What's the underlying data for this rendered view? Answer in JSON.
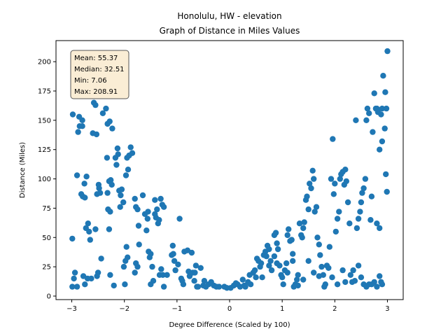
{
  "chart_data": {
    "type": "scatter",
    "title": "Honolulu, HW - elevation",
    "subtitle": "Graph of Distance in Miles Values",
    "xlabel": "Degree Difference (Scaled by 100)",
    "ylabel": "Distance (Miles)",
    "xlim": [
      -3.3,
      3.3
    ],
    "ylim": [
      -3,
      218
    ],
    "xticks": [
      -3,
      -2,
      -1,
      0,
      1,
      2,
      3
    ],
    "xtick_labels": [
      "−3",
      "−2",
      "−1",
      "0",
      "1",
      "2",
      "3"
    ],
    "yticks": [
      0,
      25,
      50,
      75,
      100,
      125,
      150,
      175,
      200
    ],
    "ytick_labels": [
      "0",
      "25",
      "50",
      "75",
      "100",
      "125",
      "150",
      "175",
      "200"
    ],
    "grid": false,
    "marker_color": "#1f77b4",
    "stats_box": {
      "lines": [
        "Mean: 55.37",
        "Median: 32.51",
        "Min: 7.06",
        "Max: 208.91"
      ],
      "placement": "top-left",
      "fill": "#f5deb3",
      "edge": "#555555"
    },
    "points": [
      [
        -2.98,
        155
      ],
      [
        -2.94,
        20
      ],
      [
        -2.96,
        15
      ],
      [
        -2.9,
        8
      ],
      [
        -2.99,
        8
      ],
      [
        -2.99,
        49
      ],
      [
        -2.9,
        103
      ],
      [
        -2.88,
        140
      ],
      [
        -2.85,
        145
      ],
      [
        -2.86,
        153
      ],
      [
        -2.8,
        150
      ],
      [
        -2.8,
        145
      ],
      [
        -2.82,
        87
      ],
      [
        -2.79,
        85
      ],
      [
        -2.76,
        96
      ],
      [
        -2.72,
        102
      ],
      [
        -2.75,
        84
      ],
      [
        -2.73,
        58
      ],
      [
        -2.67,
        55
      ],
      [
        -2.69,
        62
      ],
      [
        -2.65,
        48
      ],
      [
        -2.78,
        17
      ],
      [
        -2.75,
        10
      ],
      [
        -2.7,
        15
      ],
      [
        -2.63,
        15
      ],
      [
        -2.6,
        139
      ],
      [
        -2.58,
        165
      ],
      [
        -2.55,
        163
      ],
      [
        -2.53,
        138
      ],
      [
        -2.52,
        87
      ],
      [
        -2.49,
        95
      ],
      [
        -2.48,
        92
      ],
      [
        -2.46,
        88
      ],
      [
        -2.55,
        57
      ],
      [
        -2.5,
        20
      ],
      [
        -2.52,
        17
      ],
      [
        -2.44,
        32
      ],
      [
        -2.41,
        156
      ],
      [
        -2.35,
        160
      ],
      [
        -2.33,
        118
      ],
      [
        -2.32,
        147
      ],
      [
        -2.28,
        149
      ],
      [
        -2.27,
        72
      ],
      [
        -2.31,
        74
      ],
      [
        -2.32,
        88
      ],
      [
        -2.29,
        98
      ],
      [
        -2.26,
        99
      ],
      [
        -2.24,
        95
      ],
      [
        -2.29,
        57
      ],
      [
        -2.27,
        18
      ],
      [
        -2.2,
        9
      ],
      [
        -2.23,
        143
      ],
      [
        -2.17,
        118
      ],
      [
        -2.15,
        112
      ],
      [
        -2.13,
        126
      ],
      [
        -2.12,
        121
      ],
      [
        -2.1,
        90
      ],
      [
        -2.07,
        86
      ],
      [
        -2.05,
        91
      ],
      [
        -2.08,
        76
      ],
      [
        -2.02,
        80
      ],
      [
        -2.01,
        25
      ],
      [
        -1.98,
        30
      ],
      [
        -1.96,
        42
      ],
      [
        -1.94,
        33
      ],
      [
        -1.99,
        10
      ],
      [
        -1.95,
        118
      ],
      [
        -1.97,
        103
      ],
      [
        -1.93,
        108
      ],
      [
        -1.91,
        120
      ],
      [
        -1.88,
        127
      ],
      [
        -1.85,
        122
      ],
      [
        -1.8,
        83
      ],
      [
        -1.78,
        76
      ],
      [
        -1.75,
        74
      ],
      [
        -1.73,
        60
      ],
      [
        -1.72,
        44
      ],
      [
        -1.8,
        20
      ],
      [
        -1.78,
        28
      ],
      [
        -1.75,
        25
      ],
      [
        -1.65,
        86
      ],
      [
        -1.61,
        70
      ],
      [
        -1.58,
        56
      ],
      [
        -1.56,
        66
      ],
      [
        -1.55,
        72
      ],
      [
        -1.54,
        38
      ],
      [
        -1.52,
        33
      ],
      [
        -1.5,
        36
      ],
      [
        -1.47,
        25
      ],
      [
        -1.5,
        10
      ],
      [
        -1.45,
        13
      ],
      [
        -1.42,
        82
      ],
      [
        -1.42,
        70
      ],
      [
        -1.4,
        67
      ],
      [
        -1.38,
        74
      ],
      [
        -1.36,
        62
      ],
      [
        -1.34,
        65
      ],
      [
        -1.31,
        83
      ],
      [
        -1.28,
        78
      ],
      [
        -1.25,
        76
      ],
      [
        -1.33,
        18
      ],
      [
        -1.3,
        23
      ],
      [
        -1.27,
        18
      ],
      [
        -1.25,
        8
      ],
      [
        -1.19,
        18
      ],
      [
        -1.1,
        35
      ],
      [
        -1.08,
        43
      ],
      [
        -1.07,
        36
      ],
      [
        -1.05,
        30
      ],
      [
        -1.03,
        22
      ],
      [
        -0.98,
        27
      ],
      [
        -0.95,
        66
      ],
      [
        -0.92,
        15
      ],
      [
        -0.9,
        13
      ],
      [
        -0.88,
        10
      ],
      [
        -0.86,
        38
      ],
      [
        -0.8,
        39
      ],
      [
        -0.78,
        21
      ],
      [
        -0.76,
        17
      ],
      [
        -0.72,
        37
      ],
      [
        -0.7,
        20
      ],
      [
        -0.67,
        13
      ],
      [
        -0.66,
        20
      ],
      [
        -0.64,
        26
      ],
      [
        -0.62,
        8
      ],
      [
        -0.6,
        8
      ],
      [
        -0.55,
        24
      ],
      [
        -0.5,
        9
      ],
      [
        -0.48,
        13
      ],
      [
        -0.45,
        8
      ],
      [
        -0.4,
        10
      ],
      [
        -0.35,
        12
      ],
      [
        -0.3,
        9
      ],
      [
        -0.25,
        8
      ],
      [
        -0.2,
        8
      ],
      [
        -0.1,
        8
      ],
      [
        -0.05,
        7
      ],
      [
        0.02,
        7
      ],
      [
        0.08,
        9
      ],
      [
        0.12,
        11
      ],
      [
        0.15,
        10
      ],
      [
        0.2,
        8
      ],
      [
        0.25,
        14
      ],
      [
        0.28,
        9
      ],
      [
        0.3,
        8
      ],
      [
        0.35,
        12
      ],
      [
        0.38,
        18
      ],
      [
        0.4,
        10
      ],
      [
        0.45,
        20
      ],
      [
        0.48,
        22
      ],
      [
        0.5,
        16
      ],
      [
        0.52,
        32
      ],
      [
        0.55,
        30
      ],
      [
        0.58,
        25
      ],
      [
        0.6,
        28
      ],
      [
        0.62,
        16
      ],
      [
        0.65,
        35
      ],
      [
        0.68,
        38
      ],
      [
        0.7,
        34
      ],
      [
        0.72,
        43
      ],
      [
        0.75,
        26
      ],
      [
        0.78,
        30
      ],
      [
        0.8,
        22
      ],
      [
        0.85,
        52
      ],
      [
        0.88,
        54
      ],
      [
        0.9,
        45
      ],
      [
        0.92,
        40
      ],
      [
        0.95,
        26
      ],
      [
        0.98,
        18
      ],
      [
        1.0,
        16
      ],
      [
        1.02,
        10
      ],
      [
        1.05,
        22
      ],
      [
        1.08,
        28
      ],
      [
        1.1,
        52
      ],
      [
        1.12,
        57
      ],
      [
        1.15,
        47
      ],
      [
        1.18,
        48
      ],
      [
        1.2,
        36
      ],
      [
        1.22,
        8
      ],
      [
        1.25,
        10
      ],
      [
        1.28,
        14
      ],
      [
        1.3,
        9
      ],
      [
        1.33,
        62
      ],
      [
        1.36,
        52
      ],
      [
        1.38,
        50
      ],
      [
        1.4,
        58
      ],
      [
        1.42,
        63
      ],
      [
        1.45,
        82
      ],
      [
        1.47,
        85
      ],
      [
        1.5,
        74
      ],
      [
        1.52,
        96
      ],
      [
        1.55,
        92
      ],
      [
        1.58,
        107
      ],
      [
        1.6,
        100
      ],
      [
        1.62,
        72
      ],
      [
        1.65,
        76
      ],
      [
        1.67,
        50
      ],
      [
        1.7,
        44
      ],
      [
        1.72,
        35
      ],
      [
        1.75,
        25
      ],
      [
        1.78,
        18
      ],
      [
        1.8,
        8
      ],
      [
        1.82,
        10
      ],
      [
        1.85,
        26
      ],
      [
        1.88,
        24
      ],
      [
        1.9,
        42
      ],
      [
        1.93,
        100
      ],
      [
        1.96,
        134
      ],
      [
        1.98,
        87
      ],
      [
        2.0,
        96
      ],
      [
        2.02,
        55
      ],
      [
        2.05,
        66
      ],
      [
        2.08,
        72
      ],
      [
        2.1,
        100
      ],
      [
        2.12,
        104
      ],
      [
        2.15,
        106
      ],
      [
        2.18,
        95
      ],
      [
        2.2,
        108
      ],
      [
        2.22,
        98
      ],
      [
        2.25,
        80
      ],
      [
        2.28,
        62
      ],
      [
        2.3,
        18
      ],
      [
        2.33,
        12
      ],
      [
        2.35,
        22
      ],
      [
        2.38,
        13
      ],
      [
        2.4,
        150
      ],
      [
        2.42,
        58
      ],
      [
        2.45,
        66
      ],
      [
        2.48,
        72
      ],
      [
        2.5,
        80
      ],
      [
        2.52,
        88
      ],
      [
        2.55,
        92
      ],
      [
        2.58,
        100
      ],
      [
        2.6,
        150
      ],
      [
        2.62,
        160
      ],
      [
        2.65,
        156
      ],
      [
        2.68,
        65
      ],
      [
        2.7,
        85
      ],
      [
        2.72,
        140
      ],
      [
        2.75,
        173
      ],
      [
        2.78,
        160
      ],
      [
        2.8,
        160
      ],
      [
        2.82,
        157
      ],
      [
        2.85,
        125
      ],
      [
        2.88,
        155
      ],
      [
        2.9,
        160
      ],
      [
        2.92,
        188
      ],
      [
        2.95,
        143
      ],
      [
        2.96,
        174
      ],
      [
        2.98,
        160
      ],
      [
        2.97,
        104
      ],
      [
        2.99,
        89
      ],
      [
        3.0,
        209
      ],
      [
        2.9,
        132
      ],
      [
        2.85,
        58
      ],
      [
        2.8,
        62
      ],
      [
        2.75,
        12
      ],
      [
        2.7,
        10
      ],
      [
        2.65,
        10
      ],
      [
        2.6,
        8
      ],
      [
        2.55,
        10
      ],
      [
        2.5,
        16
      ],
      [
        2.45,
        26
      ],
      [
        2.85,
        17
      ],
      [
        2.88,
        12
      ],
      [
        2.9,
        10
      ],
      [
        2.8,
        8
      ],
      [
        1.95,
        16
      ],
      [
        2.05,
        10
      ],
      [
        2.15,
        22
      ],
      [
        2.2,
        12
      ],
      [
        1.7,
        17
      ],
      [
        1.6,
        20
      ],
      [
        1.5,
        30
      ],
      [
        1.4,
        14
      ],
      [
        1.3,
        18
      ],
      [
        1.2,
        30
      ],
      [
        1.1,
        20
      ],
      [
        0.9,
        28
      ],
      [
        0.85,
        34
      ],
      [
        0.75,
        40
      ]
    ]
  }
}
